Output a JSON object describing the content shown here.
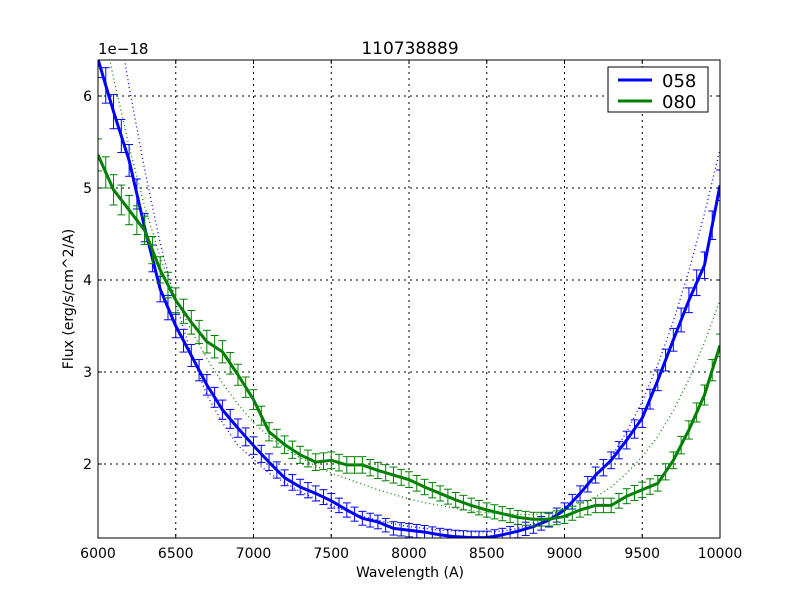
{
  "chart_data": {
    "type": "line",
    "title": "110738889",
    "xlabel": "Wavelength (A)",
    "ylabel": "Flux (erg/s/cm^2/A)",
    "y_offset_label": "1e−18",
    "xlim": [
      6000,
      10000
    ],
    "ylim": [
      1.2,
      6.39
    ],
    "xticks": [
      6000,
      6500,
      7000,
      7500,
      8000,
      8500,
      9000,
      9500,
      10000
    ],
    "xtick_labels": [
      "6000",
      "6500",
      "7000",
      "7500",
      "8000",
      "8500",
      "9000",
      "9500",
      "10000"
    ],
    "yticks": [
      2,
      3,
      4,
      5,
      6
    ],
    "ytick_labels": [
      "2",
      "3",
      "4",
      "5",
      "6"
    ],
    "grid": true,
    "legend_position": "upper right",
    "x": [
      6000,
      6100,
      6200,
      6300,
      6400,
      6500,
      6600,
      6700,
      6800,
      6900,
      7000,
      7100,
      7200,
      7300,
      7400,
      7500,
      7600,
      7700,
      7800,
      7900,
      8000,
      8100,
      8200,
      8300,
      8400,
      8500,
      8600,
      8700,
      8800,
      8900,
      9000,
      9100,
      9200,
      9300,
      9400,
      9500,
      9600,
      9700,
      9800,
      9900,
      10000
    ],
    "series": [
      {
        "name": "058",
        "color": "#0000ff",
        "style": "solid with error bars",
        "values": [
          6.4,
          5.83,
          5.3,
          4.57,
          3.9,
          3.5,
          3.18,
          2.86,
          2.59,
          2.39,
          2.2,
          2.02,
          1.85,
          1.75,
          1.68,
          1.6,
          1.5,
          1.41,
          1.37,
          1.3,
          1.28,
          1.26,
          1.23,
          1.21,
          1.2,
          1.2,
          1.23,
          1.27,
          1.32,
          1.39,
          1.5,
          1.68,
          1.88,
          2.04,
          2.26,
          2.5,
          2.91,
          3.35,
          3.78,
          4.16,
          5.03
        ]
      },
      {
        "name": "080",
        "color": "#008000",
        "style": "solid with error bars",
        "values": [
          5.36,
          4.98,
          4.76,
          4.54,
          4.11,
          3.78,
          3.54,
          3.33,
          3.22,
          2.97,
          2.7,
          2.35,
          2.21,
          2.1,
          2.02,
          2.04,
          1.99,
          1.99,
          1.93,
          1.88,
          1.83,
          1.75,
          1.68,
          1.61,
          1.55,
          1.5,
          1.46,
          1.42,
          1.4,
          1.4,
          1.43,
          1.5,
          1.55,
          1.55,
          1.65,
          1.72,
          1.79,
          2.04,
          2.37,
          2.75,
          3.29
        ]
      }
    ],
    "fit_curves": [
      {
        "name": "058 fit",
        "color": "#0000ff",
        "style": "dotted",
        "values": [
          8.2,
          7.1,
          6.1,
          5.2,
          4.4,
          3.75,
          3.2,
          2.75,
          2.45,
          2.2,
          2.05,
          1.9,
          1.8,
          1.7,
          1.62,
          1.55,
          1.49,
          1.43,
          1.39,
          1.35,
          1.32,
          1.3,
          1.28,
          1.27,
          1.26,
          1.26,
          1.27,
          1.3,
          1.35,
          1.42,
          1.53,
          1.67,
          1.85,
          2.07,
          2.35,
          2.68,
          3.08,
          3.55,
          4.1,
          4.72,
          5.42
        ]
      },
      {
        "name": "080 fit",
        "color": "#008000",
        "style": "dotted",
        "values": [
          7.0,
          6.2,
          5.45,
          4.8,
          4.25,
          3.8,
          3.45,
          3.15,
          2.88,
          2.65,
          2.45,
          2.3,
          2.17,
          2.07,
          1.98,
          1.9,
          1.84,
          1.78,
          1.72,
          1.67,
          1.62,
          1.58,
          1.55,
          1.52,
          1.49,
          1.47,
          1.46,
          1.45,
          1.45,
          1.47,
          1.5,
          1.56,
          1.64,
          1.75,
          1.9,
          2.08,
          2.3,
          2.58,
          2.92,
          3.32,
          3.78
        ]
      }
    ]
  },
  "legend": {
    "items": [
      {
        "label": "058",
        "color": "#0000ff"
      },
      {
        "label": "080",
        "color": "#008000"
      }
    ]
  }
}
